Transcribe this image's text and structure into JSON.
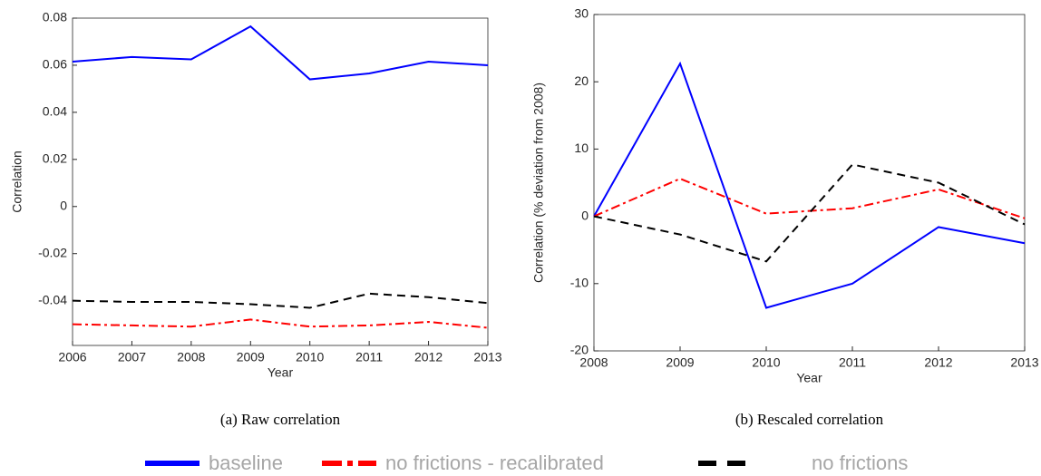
{
  "chart_data": [
    {
      "type": "line",
      "caption": "(a) Raw correlation",
      "xlabel": "Year",
      "ylabel": "Correlation",
      "x": [
        2006,
        2007,
        2008,
        2009,
        2010,
        2011,
        2012,
        2013
      ],
      "xlim": [
        2006,
        2013
      ],
      "xticks": [
        2006,
        2007,
        2008,
        2009,
        2010,
        2011,
        2012,
        2013
      ],
      "ylim": [
        -0.059,
        0.08
      ],
      "yticks": [
        -0.04,
        -0.02,
        0,
        0.02,
        0.04,
        0.06,
        0.08
      ],
      "series": [
        {
          "name": "baseline",
          "color": "#0000ff",
          "style": "solid",
          "values": [
            0.0615,
            0.0635,
            0.0625,
            0.0765,
            0.054,
            0.0565,
            0.0615,
            0.06
          ]
        },
        {
          "name": "no frictions - recalibrated",
          "color": "#ff0000",
          "style": "dashdot",
          "values": [
            -0.05,
            -0.0505,
            -0.051,
            -0.048,
            -0.051,
            -0.0505,
            -0.049,
            -0.0515
          ]
        },
        {
          "name": "no frictions",
          "color": "#000000",
          "style": "dashed",
          "values": [
            -0.04,
            -0.0405,
            -0.0405,
            -0.0415,
            -0.043,
            -0.037,
            -0.0385,
            -0.041
          ]
        }
      ]
    },
    {
      "type": "line",
      "caption": "(b) Rescaled correlation",
      "xlabel": "Year",
      "ylabel": "Correlation (% deviation from 2008)",
      "x": [
        2008,
        2009,
        2010,
        2011,
        2012,
        2013
      ],
      "xlim": [
        2008,
        2013
      ],
      "xticks": [
        2008,
        2009,
        2010,
        2011,
        2012,
        2013
      ],
      "ylim": [
        -20,
        30
      ],
      "yticks": [
        -20,
        -10,
        0,
        10,
        20,
        30
      ],
      "series": [
        {
          "name": "baseline",
          "color": "#0000ff",
          "style": "solid",
          "values": [
            0,
            22.7,
            -13.6,
            -10,
            -1.6,
            -4
          ]
        },
        {
          "name": "no frictions - recalibrated",
          "color": "#ff0000",
          "style": "dashdot",
          "values": [
            0,
            5.6,
            0.4,
            1.2,
            4.0,
            -0.3
          ]
        },
        {
          "name": "no frictions",
          "color": "#000000",
          "style": "dashed",
          "values": [
            0,
            -2.7,
            -6.7,
            7.7,
            5.0,
            -1.2
          ]
        }
      ]
    }
  ]
}
